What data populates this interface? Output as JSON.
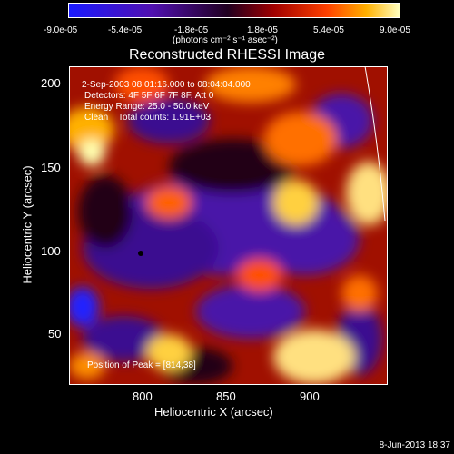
{
  "colorbar": {
    "ticks": [
      "-9.0e-05",
      "-5.4e-05",
      "-1.8e-05",
      "1.8e-05",
      "5.4e-05",
      "9.0e-05"
    ],
    "units": "(photons cm⁻² s⁻¹ asec⁻²)",
    "colors": [
      "#1a1aff",
      "#5010b0",
      "#200020",
      "#a00000",
      "#ff4000",
      "#ffb000",
      "#ffffc0"
    ]
  },
  "title": "Reconstructed RHESSI Image",
  "info": {
    "time": "2-Sep-2003 08:01:16.000 to 08:04:04.000",
    "detectors": "Detectors: 4F 5F 6F 7F 8F, Att 0",
    "energy": "Energy Range: 25.0 - 50.0 keV",
    "clean": "Clean    Total counts: 1.91E+03",
    "peak": "Position of Peak = [814,38]"
  },
  "axes": {
    "xlabel": "Heliocentric X (arcsec)",
    "ylabel": "Heliocentric Y (arcsec)",
    "xticks": [
      "800",
      "850",
      "900"
    ],
    "yticks": [
      "200",
      "150",
      "100",
      "50"
    ]
  },
  "footer": "8-Jun-2013 18:37"
}
